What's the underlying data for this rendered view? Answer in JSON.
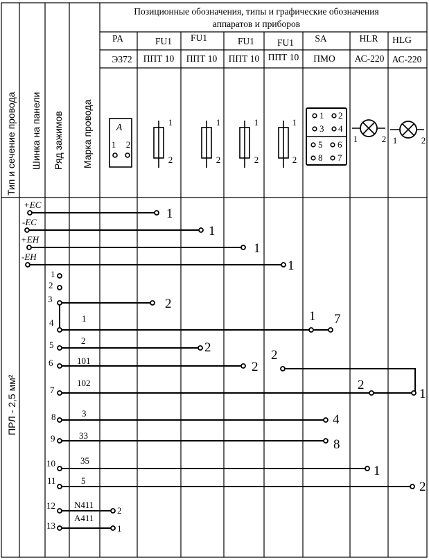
{
  "header": {
    "group_title_line1": "Позиционные обозначения, типы и графические обозначения",
    "group_title_line2": "аппаратов и приборов",
    "col_wire_type": "Тип и сечение провода",
    "col_panel_bus": "Шинка на панели",
    "col_terminal_row": "Ряд зажимов",
    "col_wire_mark": "Марка провода"
  },
  "devices": [
    {
      "designation": "PA",
      "type": "Э372",
      "symbol": "ammeter"
    },
    {
      "designation": "FU1",
      "type": "ППТ 10",
      "symbol": "fuse"
    },
    {
      "designation": "FU1",
      "type": "ППТ 10",
      "symbol": "fuse"
    },
    {
      "designation": "FU1",
      "type": "ППТ 10",
      "symbol": "fuse"
    },
    {
      "designation": "FU1",
      "type": "ППТ 10",
      "symbol": "fuse"
    },
    {
      "designation": "SA",
      "type": "ПМО",
      "symbol": "switch"
    },
    {
      "designation": "HLR",
      "type": "АС-220",
      "symbol": "lamp"
    },
    {
      "designation": "HLG",
      "type": "АС-220",
      "symbol": "lamp"
    }
  ],
  "symbols": {
    "ammeter_letter": "A",
    "ammeter_pin1": "1",
    "ammeter_pin2": "2",
    "fuse_pin_top": "1",
    "fuse_pin_bottom": "2",
    "switch_pins": [
      "1",
      "2",
      "3",
      "4",
      "5",
      "6",
      "8",
      "7"
    ],
    "lamp_pin_left": "1",
    "lamp_pin_right": "2"
  },
  "wire_type": "ПРЛ - 2,5 мм²",
  "buses": [
    "+EC",
    "-EC",
    "+EH",
    "-EH"
  ],
  "bus_end_pins": [
    "1",
    "1",
    "1",
    "1"
  ],
  "terminals": [
    "1",
    "2",
    "3",
    "4",
    "5",
    "6",
    "7",
    "8",
    "9",
    "10",
    "11",
    "12",
    "13"
  ],
  "wire_marks": [
    "1",
    "2",
    "101",
    "102",
    "3",
    "33",
    "35",
    "5",
    "N411",
    "A411"
  ],
  "connection_pins": {
    "t3": "2",
    "t4_left": "1",
    "t4_right": "7",
    "t5": "2",
    "t6": "2",
    "sa_2": "2",
    "hlr_2": "2",
    "hlg_1": "1",
    "t8": "4",
    "t9": "8",
    "t10": "1",
    "t11": "2",
    "t12": "2",
    "t13": "1"
  }
}
